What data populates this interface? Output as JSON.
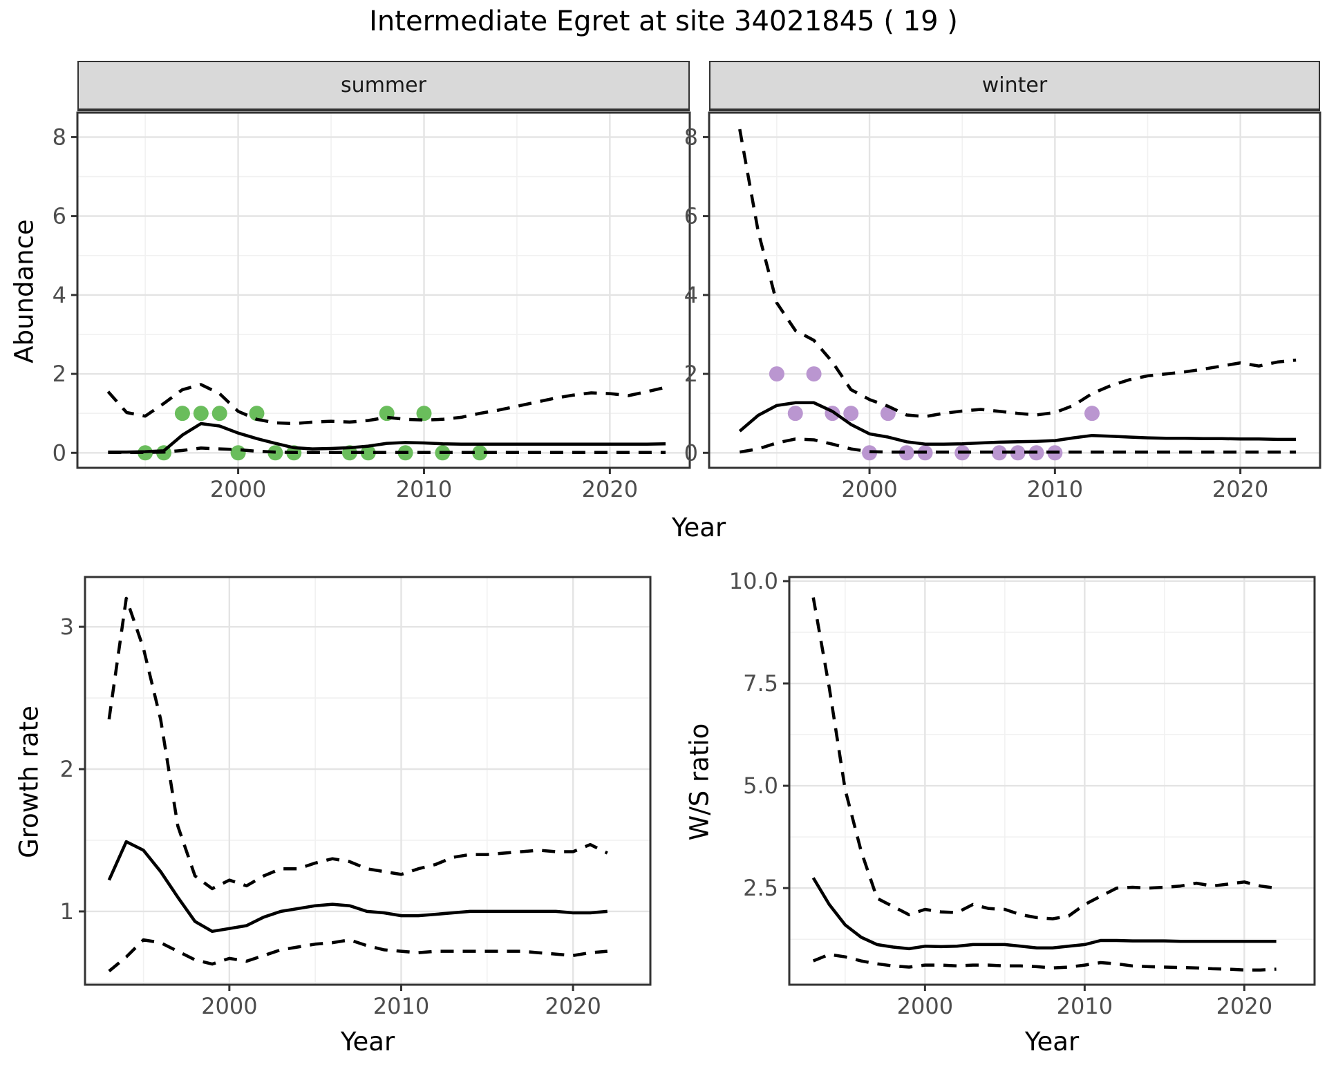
{
  "title": "Intermediate Egret at site 34021845 ( 19 )",
  "colors": {
    "summer_points": "#6abd5c",
    "winter_points": "#ba96d0",
    "line": "#000000",
    "panel_border": "#333333",
    "strip_background": "#d9d9d9",
    "grid_major": "#e4e4e4",
    "grid_minor": "#f1f1f1",
    "tick_text": "#4d4d4d"
  },
  "chart_data": [
    {
      "id": "abundance",
      "type": "line",
      "xlabel": "Year",
      "ylabel": "Abundance",
      "x_ticks": [
        2000,
        2010,
        2020
      ],
      "y_ticks": [
        0,
        2,
        4,
        6,
        8
      ],
      "xlim": [
        1991.35,
        2024.3
      ],
      "ylim": [
        -0.38,
        8.62
      ],
      "grid": true,
      "facets": [
        {
          "label": "summer",
          "point_color": "#6abd5c",
          "x": [
            1993,
            1994,
            1995,
            1996,
            1997,
            1998,
            1999,
            2000,
            2001,
            2002,
            2003,
            2004,
            2005,
            2006,
            2007,
            2008,
            2009,
            2010,
            2011,
            2012,
            2013,
            2014,
            2015,
            2016,
            2017,
            2018,
            2019,
            2020,
            2021,
            2022,
            2023
          ],
          "series": [
            {
              "name": "lower_ci",
              "style": "dashed",
              "values": [
                0.01,
                0.01,
                0.01,
                0.02,
                0.06,
                0.12,
                0.1,
                0.08,
                0.04,
                0.02,
                0.01,
                0.01,
                0.01,
                0.01,
                0.01,
                0.01,
                0.01,
                0.01,
                0.01,
                0.01,
                0.01,
                0.01,
                0.01,
                0.01,
                0.01,
                0.01,
                0.01,
                0.01,
                0.01,
                0.01,
                0.01
              ]
            },
            {
              "name": "upper_ci",
              "style": "dashed",
              "values": [
                1.55,
                1.02,
                0.93,
                1.25,
                1.6,
                1.73,
                1.5,
                1.05,
                0.85,
                0.76,
                0.74,
                0.78,
                0.8,
                0.78,
                0.82,
                0.9,
                0.85,
                0.83,
                0.85,
                0.9,
                1.0,
                1.08,
                1.18,
                1.28,
                1.38,
                1.46,
                1.52,
                1.5,
                1.45,
                1.55,
                1.66
              ]
            },
            {
              "name": "mean",
              "style": "solid",
              "values": [
                0.02,
                0.02,
                0.03,
                0.05,
                0.45,
                0.74,
                0.68,
                0.5,
                0.36,
                0.24,
                0.13,
                0.1,
                0.11,
                0.13,
                0.17,
                0.24,
                0.26,
                0.25,
                0.23,
                0.22,
                0.22,
                0.22,
                0.22,
                0.22,
                0.22,
                0.22,
                0.22,
                0.22,
                0.22,
                0.22,
                0.23
              ]
            }
          ],
          "observations": {
            "years": [
              1995,
              1996,
              1997,
              1998,
              1999,
              2000,
              2001,
              2002,
              2003,
              2006,
              2007,
              2008,
              2009,
              2010,
              2011,
              2013
            ],
            "counts": [
              0,
              0,
              1,
              1,
              1,
              0,
              1,
              0,
              0,
              0,
              0,
              1,
              0,
              1,
              0,
              0
            ]
          }
        },
        {
          "label": "winter",
          "point_color": "#ba96d0",
          "x": [
            1993,
            1994,
            1995,
            1996,
            1997,
            1998,
            1999,
            2000,
            2001,
            2002,
            2003,
            2004,
            2005,
            2006,
            2007,
            2008,
            2009,
            2010,
            2011,
            2012,
            2013,
            2014,
            2015,
            2016,
            2017,
            2018,
            2019,
            2020,
            2021,
            2022,
            2023
          ],
          "series": [
            {
              "name": "lower_ci",
              "style": "dashed",
              "values": [
                0.02,
                0.1,
                0.25,
                0.35,
                0.33,
                0.22,
                0.1,
                0.03,
                0.02,
                0.02,
                0.02,
                0.02,
                0.02,
                0.02,
                0.02,
                0.02,
                0.02,
                0.02,
                0.02,
                0.02,
                0.02,
                0.02,
                0.02,
                0.02,
                0.02,
                0.02,
                0.02,
                0.02,
                0.02,
                0.02,
                0.02
              ]
            },
            {
              "name": "upper_ci",
              "style": "dashed",
              "values": [
                8.2,
                5.6,
                3.8,
                3.1,
                2.85,
                2.3,
                1.6,
                1.35,
                1.18,
                0.96,
                0.92,
                1.0,
                1.06,
                1.1,
                1.05,
                1.0,
                0.96,
                1.02,
                1.2,
                1.5,
                1.7,
                1.85,
                1.95,
                2.0,
                2.05,
                2.12,
                2.2,
                2.28,
                2.2,
                2.3,
                2.35
              ]
            },
            {
              "name": "mean",
              "style": "solid",
              "values": [
                0.55,
                0.95,
                1.2,
                1.27,
                1.27,
                1.05,
                0.72,
                0.48,
                0.4,
                0.28,
                0.22,
                0.22,
                0.23,
                0.25,
                0.27,
                0.28,
                0.29,
                0.31,
                0.38,
                0.44,
                0.42,
                0.4,
                0.38,
                0.37,
                0.37,
                0.36,
                0.36,
                0.35,
                0.35,
                0.34,
                0.34
              ]
            }
          ],
          "observations": {
            "years": [
              1995,
              1996,
              1997,
              1998,
              1999,
              2000,
              2001,
              2002,
              2003,
              2005,
              2007,
              2008,
              2009,
              2010,
              2012
            ],
            "counts": [
              2,
              1,
              2,
              1,
              1,
              0,
              1,
              0,
              0,
              0,
              0,
              0,
              0,
              0,
              1
            ]
          }
        }
      ]
    },
    {
      "id": "growth_rate",
      "type": "line",
      "xlabel": "Year",
      "ylabel": "Growth rate",
      "x_ticks": [
        2000,
        2010,
        2020
      ],
      "y_ticks": [
        1,
        2,
        3
      ],
      "xlim": [
        1991.6,
        2024.5
      ],
      "ylim": [
        0.485,
        3.35
      ],
      "grid": true,
      "x": [
        1993,
        1994,
        1995,
        1996,
        1997,
        1998,
        1999,
        2000,
        2001,
        2002,
        2003,
        2004,
        2005,
        2006,
        2007,
        2008,
        2009,
        2010,
        2011,
        2012,
        2013,
        2014,
        2015,
        2016,
        2017,
        2018,
        2019,
        2020,
        2021,
        2022
      ],
      "series": [
        {
          "name": "lower_ci",
          "style": "dashed",
          "values": [
            0.58,
            0.68,
            0.8,
            0.78,
            0.72,
            0.66,
            0.63,
            0.67,
            0.65,
            0.69,
            0.73,
            0.75,
            0.77,
            0.78,
            0.8,
            0.76,
            0.73,
            0.72,
            0.71,
            0.72,
            0.72,
            0.72,
            0.72,
            0.72,
            0.72,
            0.71,
            0.7,
            0.69,
            0.71,
            0.72
          ]
        },
        {
          "name": "upper_ci",
          "style": "dashed",
          "values": [
            2.35,
            3.2,
            2.85,
            2.35,
            1.6,
            1.25,
            1.16,
            1.22,
            1.18,
            1.25,
            1.3,
            1.3,
            1.34,
            1.37,
            1.35,
            1.3,
            1.28,
            1.26,
            1.3,
            1.33,
            1.38,
            1.4,
            1.4,
            1.41,
            1.42,
            1.43,
            1.42,
            1.42,
            1.47,
            1.41
          ]
        },
        {
          "name": "mean",
          "style": "solid",
          "values": [
            1.22,
            1.49,
            1.43,
            1.28,
            1.1,
            0.93,
            0.86,
            0.88,
            0.9,
            0.96,
            1.0,
            1.02,
            1.04,
            1.05,
            1.04,
            1.0,
            0.99,
            0.97,
            0.97,
            0.98,
            0.99,
            1.0,
            1.0,
            1.0,
            1.0,
            1.0,
            1.0,
            0.99,
            0.99,
            1.0
          ]
        }
      ]
    },
    {
      "id": "ws_ratio",
      "type": "line",
      "xlabel": "Year",
      "ylabel": "W/S ratio",
      "x_ticks": [
        2000,
        2010,
        2020
      ],
      "y_ticks": [
        2.5,
        5.0,
        7.5,
        10.0
      ],
      "y_tick_labels": [
        "2.5",
        "5.0",
        "7.5",
        "10.0"
      ],
      "xlim": [
        1991.5,
        2024.4
      ],
      "ylim": [
        0.14,
        10.1
      ],
      "grid": true,
      "x": [
        1993,
        1994,
        1995,
        1996,
        1997,
        1998,
        1999,
        2000,
        2001,
        2002,
        2003,
        2004,
        2005,
        2006,
        2007,
        2008,
        2009,
        2010,
        2011,
        2012,
        2013,
        2014,
        2015,
        2016,
        2017,
        2018,
        2019,
        2020,
        2021,
        2022
      ],
      "series": [
        {
          "name": "lower_ci",
          "style": "dashed",
          "values": [
            0.72,
            0.88,
            0.82,
            0.72,
            0.65,
            0.6,
            0.57,
            0.62,
            0.62,
            0.6,
            0.62,
            0.62,
            0.6,
            0.6,
            0.58,
            0.55,
            0.57,
            0.62,
            0.68,
            0.65,
            0.6,
            0.58,
            0.57,
            0.56,
            0.55,
            0.53,
            0.52,
            0.5,
            0.5,
            0.52
          ]
        },
        {
          "name": "upper_ci",
          "style": "dashed",
          "values": [
            9.6,
            7.4,
            4.9,
            3.4,
            2.25,
            2.05,
            1.85,
            1.98,
            1.92,
            1.9,
            2.1,
            2.0,
            1.98,
            1.85,
            1.78,
            1.75,
            1.82,
            2.1,
            2.3,
            2.5,
            2.52,
            2.5,
            2.52,
            2.55,
            2.62,
            2.55,
            2.6,
            2.65,
            2.55,
            2.5
          ]
        },
        {
          "name": "mean",
          "style": "solid",
          "values": [
            2.75,
            2.1,
            1.6,
            1.3,
            1.12,
            1.06,
            1.02,
            1.08,
            1.07,
            1.08,
            1.12,
            1.12,
            1.12,
            1.08,
            1.04,
            1.04,
            1.08,
            1.12,
            1.22,
            1.22,
            1.21,
            1.21,
            1.21,
            1.2,
            1.2,
            1.2,
            1.2,
            1.2,
            1.2,
            1.2
          ]
        }
      ]
    }
  ]
}
